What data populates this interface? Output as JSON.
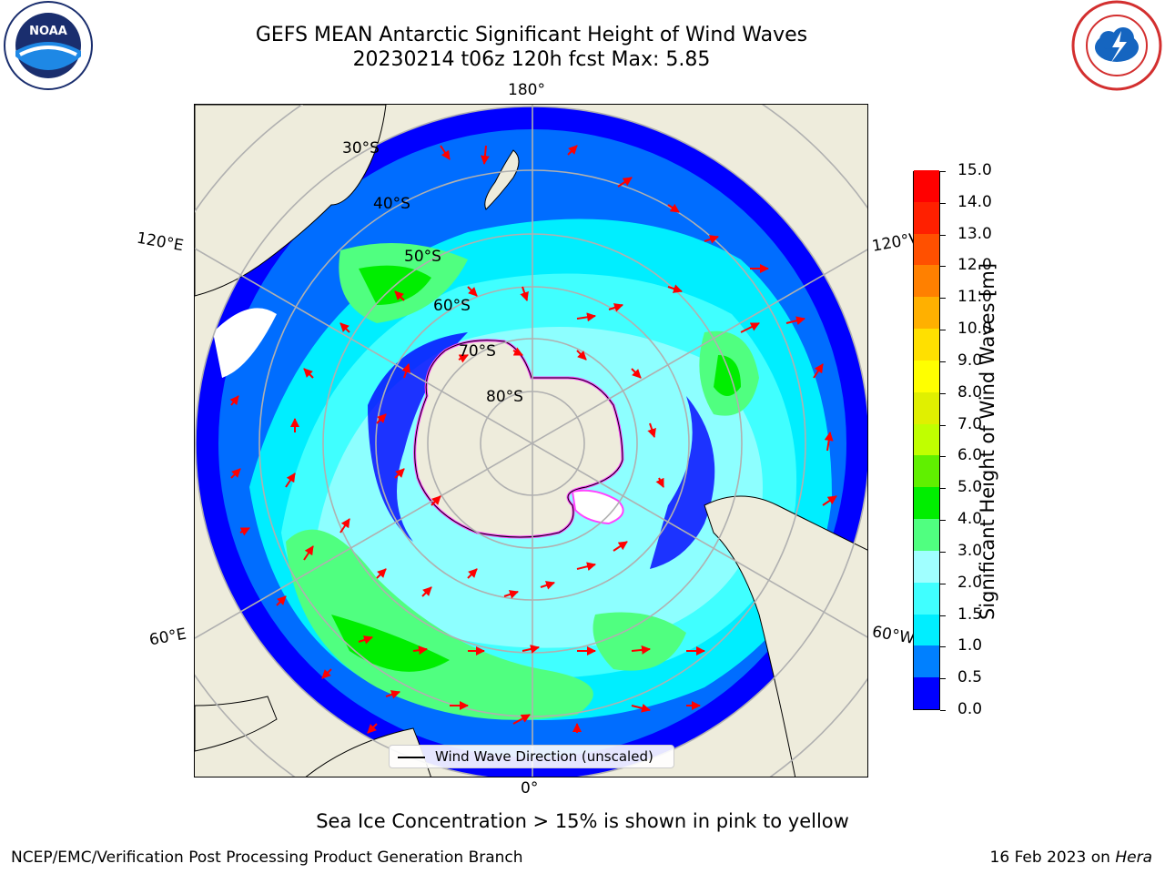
{
  "title": "GEFS MEAN Antarctic Significant Height of Wind Waves",
  "subtitle": "20230214 t06z 120h fcst   Max: 5.85",
  "logos": {
    "left": "NOAA",
    "right": "NATIONAL WEATHER SERVICE"
  },
  "longitude_labels": {
    "top": "180°",
    "bottom": "0°",
    "upper_left": "120°E",
    "upper_right": "120°W",
    "lower_left": "60°E",
    "lower_right": "60°W"
  },
  "latitude_labels": [
    "30°S",
    "40°S",
    "50°S",
    "60°S",
    "70°S",
    "80°S"
  ],
  "colorbar": {
    "label": "Significant Height of Wind Waves [m]",
    "ticks": [
      "0.0",
      "0.5",
      "1.0",
      "1.5",
      "2.0",
      "3.0",
      "4.0",
      "5.0",
      "6.0",
      "7.0",
      "8.0",
      "9.0",
      "10.0",
      "11.0",
      "12.0",
      "13.0",
      "14.0",
      "15.0"
    ],
    "colors": [
      "#0000ff",
      "#0080ff",
      "#00eeff",
      "#40ffff",
      "#a0ffff",
      "#50ff80",
      "#00ee00",
      "#60f000",
      "#c0ff00",
      "#e0f000",
      "#ffff00",
      "#ffe000",
      "#ffb000",
      "#ff8000",
      "#ff5000",
      "#ff2000",
      "#ff0000"
    ]
  },
  "legend": {
    "label": "Wind Wave Direction (unscaled)"
  },
  "note": "Sea Ice Concentration > 15% is shown in pink to yellow",
  "footer": {
    "left": "NCEP/EMC/Verification Post Processing Product Generation Branch",
    "date": "16 Feb 2023 on ",
    "host": "Hera"
  },
  "colors": {
    "land": "#eeecdc",
    "ocean_low": "#0000ff",
    "arrow": "#ff0000",
    "sea_ice": "#ff44ff",
    "grid": "#b0b0b0"
  }
}
